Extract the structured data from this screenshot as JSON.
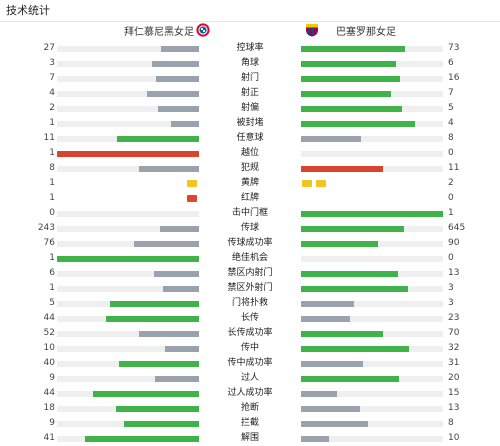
{
  "page": {
    "title": "技术统计"
  },
  "teams": {
    "home": "拜仁慕尼黑女足",
    "away": "巴塞罗那女足"
  },
  "colors": {
    "gray": "#9aa3ad",
    "green": "#3fb24a",
    "red": "#d9442e",
    "yellow": "#f3c320",
    "card_red": "#e0452f",
    "track": "#efefef"
  },
  "icons": {
    "home_crest": "bayern-crest-icon",
    "away_crest": "barcelona-crest-icon"
  },
  "chart_data": {
    "type": "table",
    "columns": [
      "拜仁慕尼黑女足",
      "巴塞罗那女足"
    ],
    "rows": [
      {
        "label": "控球率",
        "home": 27,
        "away": 73,
        "home_share": 0.27,
        "away_share": 0.73,
        "home_color": "gray",
        "away_color": "green"
      },
      {
        "label": "角球",
        "home": 3,
        "away": 6,
        "home_share": 0.333,
        "away_share": 0.667,
        "home_color": "gray",
        "away_color": "green"
      },
      {
        "label": "射门",
        "home": 7,
        "away": 16,
        "home_share": 0.304,
        "away_share": 0.696,
        "home_color": "gray",
        "away_color": "green"
      },
      {
        "label": "射正",
        "home": 4,
        "away": 7,
        "home_share": 0.364,
        "away_share": 0.636,
        "home_color": "gray",
        "away_color": "green"
      },
      {
        "label": "射偏",
        "home": 2,
        "away": 5,
        "home_share": 0.286,
        "away_share": 0.714,
        "home_color": "gray",
        "away_color": "green"
      },
      {
        "label": "被封堵",
        "home": 1,
        "away": 4,
        "home_share": 0.2,
        "away_share": 0.8,
        "home_color": "gray",
        "away_color": "green"
      },
      {
        "label": "任意球",
        "home": 11,
        "away": 8,
        "home_share": 0.579,
        "away_share": 0.421,
        "home_color": "green",
        "away_color": "gray"
      },
      {
        "label": "越位",
        "home": 1,
        "away": 0,
        "home_share": 1,
        "away_share": 0,
        "home_color": "red",
        "away_color": "gray"
      },
      {
        "label": "犯规",
        "home": 8,
        "away": 11,
        "home_share": 0.421,
        "away_share": 0.579,
        "home_color": "gray",
        "away_color": "red"
      },
      {
        "label": "黄牌",
        "home": 1,
        "away": 2,
        "kind": "cards",
        "card": "yellow"
      },
      {
        "label": "红牌",
        "home": 1,
        "away": 0,
        "kind": "cards",
        "card": "red"
      },
      {
        "label": "击中门框",
        "home": 0,
        "away": 1,
        "home_share": 0,
        "away_share": 1,
        "home_color": "gray",
        "away_color": "green"
      },
      {
        "label": "传球",
        "home": 243,
        "away": 645,
        "home_share": 0.274,
        "away_share": 0.726,
        "home_color": "gray",
        "away_color": "green"
      },
      {
        "label": "传球成功率",
        "home": 76,
        "away": 90,
        "home_share": 0.458,
        "away_share": 0.542,
        "home_color": "gray",
        "away_color": "green"
      },
      {
        "label": "绝佳机会",
        "home": 1,
        "away": 0,
        "home_share": 1,
        "away_share": 0,
        "home_color": "green",
        "away_color": "gray"
      },
      {
        "label": "禁区内射门",
        "home": 6,
        "away": 13,
        "home_share": 0.316,
        "away_share": 0.684,
        "home_color": "gray",
        "away_color": "green"
      },
      {
        "label": "禁区外射门",
        "home": 1,
        "away": 3,
        "home_share": 0.25,
        "away_share": 0.75,
        "home_color": "gray",
        "away_color": "green"
      },
      {
        "label": "门将扑救",
        "home": 5,
        "away": 3,
        "home_share": 0.625,
        "away_share": 0.375,
        "home_color": "green",
        "away_color": "gray"
      },
      {
        "label": "长传",
        "home": 44,
        "away": 23,
        "home_share": 0.657,
        "away_share": 0.343,
        "home_color": "green",
        "away_color": "gray"
      },
      {
        "label": "长传成功率",
        "home": 52,
        "away": 70,
        "home_share": 0.426,
        "away_share": 0.574,
        "home_color": "gray",
        "away_color": "green"
      },
      {
        "label": "传中",
        "home": 10,
        "away": 32,
        "home_share": 0.238,
        "away_share": 0.762,
        "home_color": "gray",
        "away_color": "green"
      },
      {
        "label": "传中成功率",
        "home": 40,
        "away": 31,
        "home_share": 0.563,
        "away_share": 0.437,
        "home_color": "green",
        "away_color": "gray"
      },
      {
        "label": "过人",
        "home": 9,
        "away": 20,
        "home_share": 0.31,
        "away_share": 0.69,
        "home_color": "gray",
        "away_color": "green"
      },
      {
        "label": "过人成功率",
        "home": 44,
        "away": 15,
        "home_share": 0.746,
        "away_share": 0.254,
        "home_color": "green",
        "away_color": "gray"
      },
      {
        "label": "抢断",
        "home": 18,
        "away": 13,
        "home_share": 0.581,
        "away_share": 0.419,
        "home_color": "green",
        "away_color": "gray"
      },
      {
        "label": "拦截",
        "home": 9,
        "away": 8,
        "home_share": 0.529,
        "away_share": 0.471,
        "home_color": "green",
        "away_color": "gray"
      },
      {
        "label": "解围",
        "home": 41,
        "away": 10,
        "home_share": 0.804,
        "away_share": 0.196,
        "home_color": "green",
        "away_color": "gray"
      }
    ]
  }
}
